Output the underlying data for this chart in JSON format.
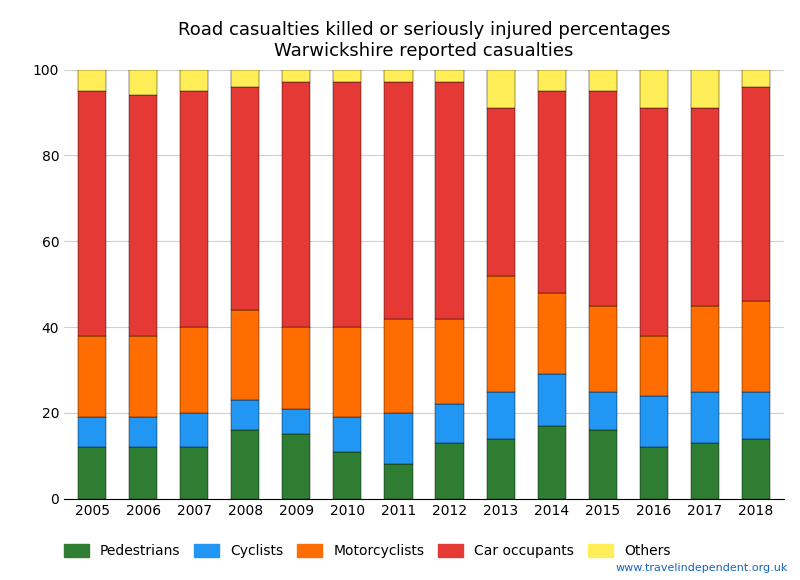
{
  "years": [
    2005,
    2006,
    2007,
    2008,
    2009,
    2010,
    2011,
    2012,
    2013,
    2014,
    2015,
    2016,
    2017,
    2018
  ],
  "pedestrians": [
    12,
    12,
    12,
    16,
    15,
    11,
    8,
    13,
    14,
    17,
    16,
    12,
    13,
    14
  ],
  "cyclists": [
    7,
    7,
    8,
    7,
    6,
    8,
    12,
    9,
    11,
    12,
    9,
    12,
    12,
    11
  ],
  "motorcyclists": [
    19,
    19,
    20,
    21,
    19,
    21,
    22,
    20,
    27,
    19,
    20,
    14,
    20,
    21
  ],
  "car_occupants": [
    57,
    56,
    55,
    52,
    57,
    57,
    55,
    55,
    39,
    47,
    50,
    53,
    46,
    50
  ],
  "others": [
    5,
    6,
    5,
    4,
    3,
    3,
    3,
    3,
    9,
    5,
    5,
    9,
    9,
    4
  ],
  "colors": {
    "pedestrians": "#2e7d32",
    "cyclists": "#2196f3",
    "motorcyclists": "#ff6d00",
    "car_occupants": "#e53935",
    "others": "#ffee58"
  },
  "title_line1": "Road casualties killed or seriously injured percentages",
  "title_line2": "Warwickshire reported casualties",
  "ylim": [
    0,
    100
  ],
  "legend_labels": [
    "Pedestrians",
    "Cyclists",
    "Motorcyclists",
    "Car occupants",
    "Others"
  ],
  "watermark": "www.travelindependent.org.uk"
}
